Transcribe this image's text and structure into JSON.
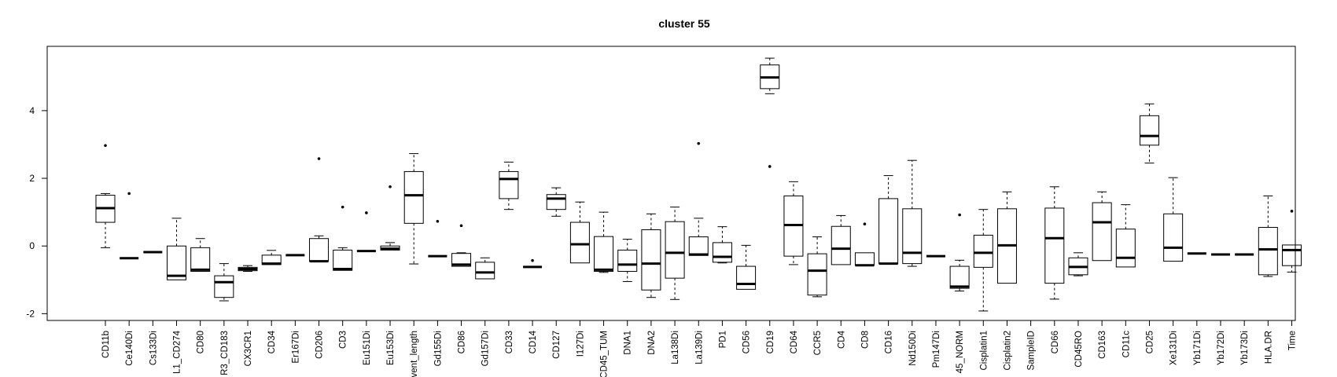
{
  "chart_data": {
    "type": "box",
    "title": "cluster 55",
    "xlabel": "",
    "ylabel": "",
    "ylim": [
      -2.2,
      5.9
    ],
    "yticks": [
      -2,
      0,
      2,
      4
    ],
    "grid": false,
    "boxes": [
      {
        "label": "CD11b",
        "whisker_low": -0.05,
        "q1": 0.7,
        "median": 1.12,
        "q3": 1.5,
        "whisker_high": 1.55,
        "outliers": [
          2.97
        ]
      },
      {
        "label": "Ce140Di",
        "whisker_low": -0.36,
        "q1": -0.36,
        "median": -0.36,
        "q3": -0.36,
        "whisker_high": -0.36,
        "outliers": [
          1.55
        ]
      },
      {
        "label": "Cs133Di",
        "whisker_low": -0.18,
        "q1": -0.18,
        "median": -0.18,
        "q3": -0.18,
        "whisker_high": -0.18,
        "outliers": []
      },
      {
        "label": "L1_CD274",
        "whisker_low": -1.0,
        "q1": -1.0,
        "median": -0.88,
        "q3": 0.0,
        "whisker_high": 0.82,
        "outliers": []
      },
      {
        "label": "CD80",
        "whisker_low": -0.75,
        "q1": -0.75,
        "median": -0.7,
        "q3": -0.05,
        "whisker_high": 0.22,
        "outliers": []
      },
      {
        "label": "R3_CD183",
        "whisker_low": -1.62,
        "q1": -1.52,
        "median": -1.07,
        "q3": -0.88,
        "whisker_high": -0.52,
        "outliers": []
      },
      {
        "label": "CX3CR1",
        "whisker_low": -0.75,
        "q1": -0.73,
        "median": -0.68,
        "q3": -0.63,
        "whisker_high": -0.58,
        "outliers": []
      },
      {
        "label": "CD34",
        "whisker_low": -0.55,
        "q1": -0.55,
        "median": -0.52,
        "q3": -0.27,
        "whisker_high": -0.13,
        "outliers": []
      },
      {
        "label": "Er167Di",
        "whisker_low": -0.27,
        "q1": -0.27,
        "median": -0.27,
        "q3": -0.27,
        "whisker_high": -0.27,
        "outliers": []
      },
      {
        "label": "CD206",
        "whisker_low": -0.45,
        "q1": -0.45,
        "median": -0.45,
        "q3": 0.22,
        "whisker_high": 0.3,
        "outliers": [
          2.58
        ]
      },
      {
        "label": "CD3",
        "whisker_low": -0.72,
        "q1": -0.72,
        "median": -0.68,
        "q3": -0.12,
        "whisker_high": -0.05,
        "outliers": [
          1.15
        ]
      },
      {
        "label": "Eu151Di",
        "whisker_low": -0.15,
        "q1": -0.15,
        "median": -0.15,
        "q3": -0.15,
        "whisker_high": -0.15,
        "outliers": [
          0.98
        ]
      },
      {
        "label": "Eu153Di",
        "whisker_low": -0.12,
        "q1": -0.12,
        "median": -0.08,
        "q3": 0.0,
        "whisker_high": 0.1,
        "outliers": [
          1.75
        ]
      },
      {
        "label": "vent_length",
        "whisker_low": -0.53,
        "q1": 0.67,
        "median": 1.5,
        "q3": 2.2,
        "whisker_high": 2.73,
        "outliers": []
      },
      {
        "label": "Gd155Di",
        "whisker_low": -0.3,
        "q1": -0.3,
        "median": -0.3,
        "q3": -0.3,
        "whisker_high": -0.3,
        "outliers": [
          0.73
        ]
      },
      {
        "label": "CD86",
        "whisker_low": -0.6,
        "q1": -0.6,
        "median": -0.55,
        "q3": -0.22,
        "whisker_high": -0.2,
        "outliers": [
          0.6
        ]
      },
      {
        "label": "Gd157Di",
        "whisker_low": -0.97,
        "q1": -0.97,
        "median": -0.78,
        "q3": -0.48,
        "whisker_high": -0.35,
        "outliers": []
      },
      {
        "label": "CD33",
        "whisker_low": 1.08,
        "q1": 1.4,
        "median": 1.98,
        "q3": 2.2,
        "whisker_high": 2.48,
        "outliers": []
      },
      {
        "label": "CD14",
        "whisker_low": -0.62,
        "q1": -0.62,
        "median": -0.62,
        "q3": -0.62,
        "whisker_high": -0.62,
        "outliers": [
          -0.43
        ]
      },
      {
        "label": "CD127",
        "whisker_low": 0.88,
        "q1": 1.08,
        "median": 1.4,
        "q3": 1.52,
        "whisker_high": 1.72,
        "outliers": []
      },
      {
        "label": "I127Di",
        "whisker_low": -0.5,
        "q1": -0.5,
        "median": 0.05,
        "q3": 0.7,
        "whisker_high": 1.3,
        "outliers": []
      },
      {
        "label": "CD45_TUM",
        "whisker_low": -0.78,
        "q1": -0.75,
        "median": -0.7,
        "q3": 0.28,
        "whisker_high": 1.0,
        "outliers": []
      },
      {
        "label": "DNA1",
        "whisker_low": -1.05,
        "q1": -0.75,
        "median": -0.55,
        "q3": -0.12,
        "whisker_high": 0.2,
        "outliers": []
      },
      {
        "label": "DNA2",
        "whisker_low": -1.52,
        "q1": -1.3,
        "median": -0.52,
        "q3": 0.48,
        "whisker_high": 0.95,
        "outliers": []
      },
      {
        "label": "La138Di",
        "whisker_low": -1.58,
        "q1": -0.95,
        "median": -0.2,
        "q3": 0.72,
        "whisker_high": 1.15,
        "outliers": []
      },
      {
        "label": "La139Di",
        "whisker_low": -0.28,
        "q1": -0.28,
        "median": -0.25,
        "q3": 0.27,
        "whisker_high": 0.82,
        "outliers": [
          3.03
        ]
      },
      {
        "label": "PD1",
        "whisker_low": -0.5,
        "q1": -0.48,
        "median": -0.32,
        "q3": 0.1,
        "whisker_high": 0.57,
        "outliers": []
      },
      {
        "label": "CD56",
        "whisker_low": -1.28,
        "q1": -1.28,
        "median": -1.12,
        "q3": -0.6,
        "whisker_high": 0.02,
        "outliers": []
      },
      {
        "label": "CD19",
        "whisker_low": 4.5,
        "q1": 4.65,
        "median": 4.98,
        "q3": 5.35,
        "whisker_high": 5.55,
        "outliers": [
          2.35
        ]
      },
      {
        "label": "CD64",
        "whisker_low": -0.55,
        "q1": -0.3,
        "median": 0.62,
        "q3": 1.48,
        "whisker_high": 1.9,
        "outliers": []
      },
      {
        "label": "CCR5",
        "whisker_low": -1.5,
        "q1": -1.45,
        "median": -0.73,
        "q3": -0.23,
        "whisker_high": 0.27,
        "outliers": []
      },
      {
        "label": "CD4",
        "whisker_low": -0.55,
        "q1": -0.55,
        "median": -0.08,
        "q3": 0.58,
        "whisker_high": 0.9,
        "outliers": []
      },
      {
        "label": "CD8",
        "whisker_low": -0.57,
        "q1": -0.57,
        "median": -0.57,
        "q3": -0.2,
        "whisker_high": -0.2,
        "outliers": [
          0.65
        ]
      },
      {
        "label": "CD16",
        "whisker_low": -0.52,
        "q1": -0.52,
        "median": -0.52,
        "q3": 1.4,
        "whisker_high": 2.08,
        "outliers": []
      },
      {
        "label": "Nd150Di",
        "whisker_low": -0.6,
        "q1": -0.52,
        "median": -0.2,
        "q3": 1.1,
        "whisker_high": 2.53,
        "outliers": []
      },
      {
        "label": "Pm147Di",
        "whisker_low": -0.3,
        "q1": -0.3,
        "median": -0.3,
        "q3": -0.3,
        "whisker_high": -0.3,
        "outliers": []
      },
      {
        "label": "45_NORM",
        "whisker_low": -1.33,
        "q1": -1.25,
        "median": -1.2,
        "q3": -0.6,
        "whisker_high": -0.42,
        "outliers": [
          0.92
        ]
      },
      {
        "label": "Cisplatin1",
        "whisker_low": -1.92,
        "q1": -0.63,
        "median": -0.2,
        "q3": 0.32,
        "whisker_high": 1.08,
        "outliers": []
      },
      {
        "label": "Cisplatin2",
        "whisker_low": -1.1,
        "q1": -1.1,
        "median": 0.02,
        "q3": 1.1,
        "whisker_high": 1.6,
        "outliers": []
      },
      {
        "label": "SampleID",
        "whisker_low": null,
        "q1": null,
        "median": null,
        "q3": null,
        "whisker_high": null,
        "outliers": []
      },
      {
        "label": "CD66",
        "whisker_low": -1.57,
        "q1": -1.1,
        "median": 0.23,
        "q3": 1.12,
        "whisker_high": 1.75,
        "outliers": []
      },
      {
        "label": "CD45RO",
        "whisker_low": -0.88,
        "q1": -0.85,
        "median": -0.62,
        "q3": -0.35,
        "whisker_high": -0.2,
        "outliers": []
      },
      {
        "label": "CD163",
        "whisker_low": -0.43,
        "q1": -0.43,
        "median": 0.7,
        "q3": 1.28,
        "whisker_high": 1.6,
        "outliers": []
      },
      {
        "label": "CD11c",
        "whisker_low": -0.62,
        "q1": -0.62,
        "median": -0.35,
        "q3": 0.5,
        "whisker_high": 1.22,
        "outliers": []
      },
      {
        "label": "CD25",
        "whisker_low": 2.45,
        "q1": 2.98,
        "median": 3.25,
        "q3": 3.85,
        "whisker_high": 4.2,
        "outliers": []
      },
      {
        "label": "Xe131Di",
        "whisker_low": -0.45,
        "q1": -0.45,
        "median": -0.05,
        "q3": 0.95,
        "whisker_high": 2.02,
        "outliers": []
      },
      {
        "label": "Yb171Di",
        "whisker_low": -0.22,
        "q1": -0.22,
        "median": -0.22,
        "q3": -0.22,
        "whisker_high": -0.22,
        "outliers": []
      },
      {
        "label": "Yb172Di",
        "whisker_low": -0.25,
        "q1": -0.25,
        "median": -0.25,
        "q3": -0.25,
        "whisker_high": -0.25,
        "outliers": []
      },
      {
        "label": "Yb173Di",
        "whisker_low": -0.25,
        "q1": -0.25,
        "median": -0.25,
        "q3": -0.25,
        "whisker_high": -0.25,
        "outliers": []
      },
      {
        "label": "HLA.DR",
        "whisker_low": -0.9,
        "q1": -0.85,
        "median": -0.1,
        "q3": 0.55,
        "whisker_high": 1.48,
        "outliers": []
      },
      {
        "label": "Time",
        "whisker_low": -0.77,
        "q1": -0.58,
        "median": -0.12,
        "q3": 0.03,
        "whisker_high": 0.03,
        "outliers": [
          1.03
        ]
      }
    ]
  }
}
